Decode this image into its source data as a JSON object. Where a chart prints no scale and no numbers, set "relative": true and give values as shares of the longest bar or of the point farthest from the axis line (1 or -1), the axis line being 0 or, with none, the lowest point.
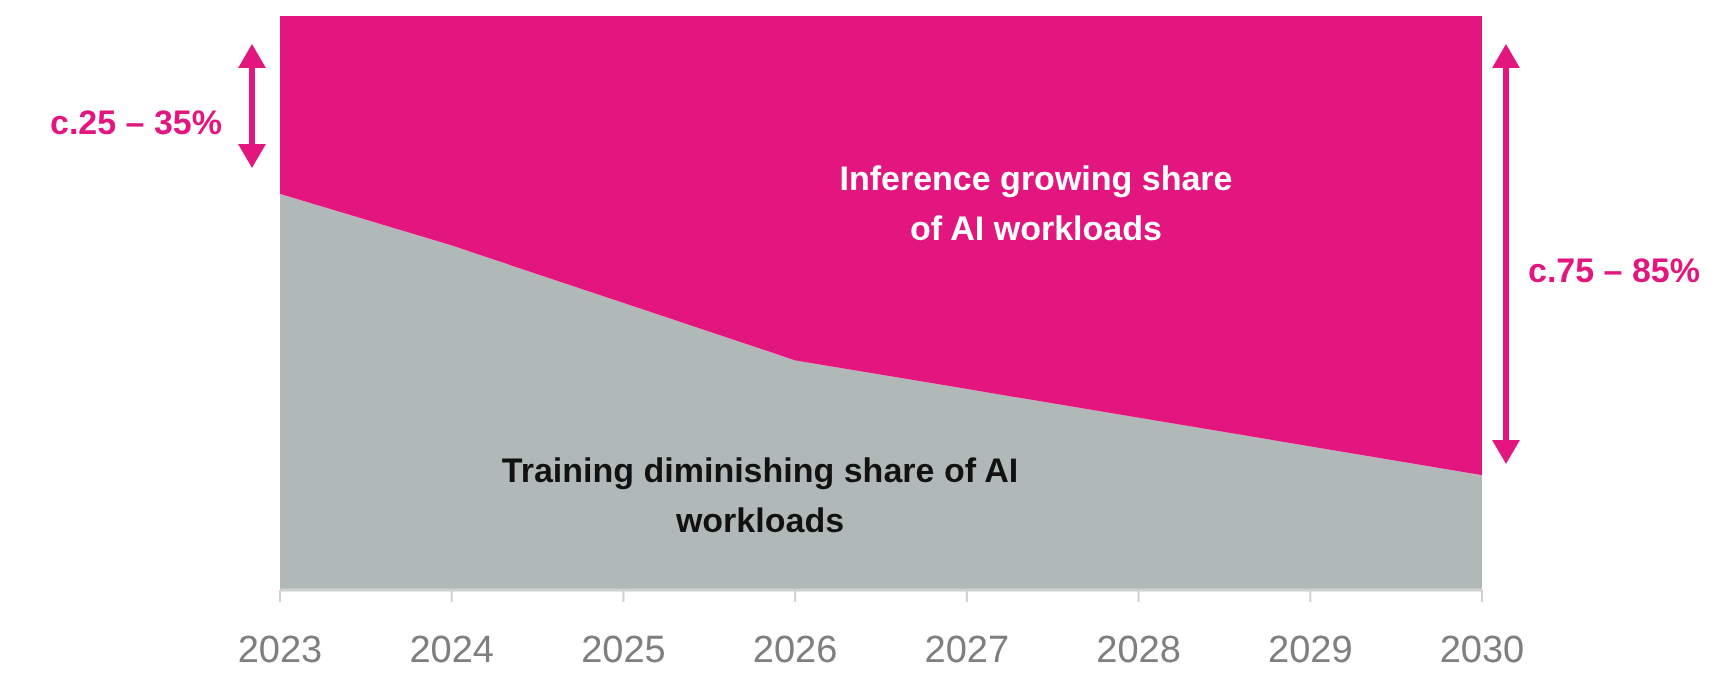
{
  "chart_data": {
    "type": "area",
    "stacked": true,
    "relative": true,
    "categories": [
      "2023",
      "2024",
      "2025",
      "2026",
      "2027",
      "2028",
      "2029",
      "2030"
    ],
    "series": [
      {
        "name": "Training diminishing share of AI workloads",
        "color": "#b0b9b8",
        "values": [
          0.69,
          0.6,
          0.5,
          0.4,
          0.35,
          0.3,
          0.25,
          0.2
        ]
      },
      {
        "name": "Inference growing share of AI workloads",
        "color": "#e3167f",
        "values": [
          0.31,
          0.4,
          0.5,
          0.6,
          0.65,
          0.7,
          0.75,
          0.8
        ]
      }
    ],
    "annotations": [
      "c.25 – 35%",
      "c.75 – 85%"
    ]
  }
}
